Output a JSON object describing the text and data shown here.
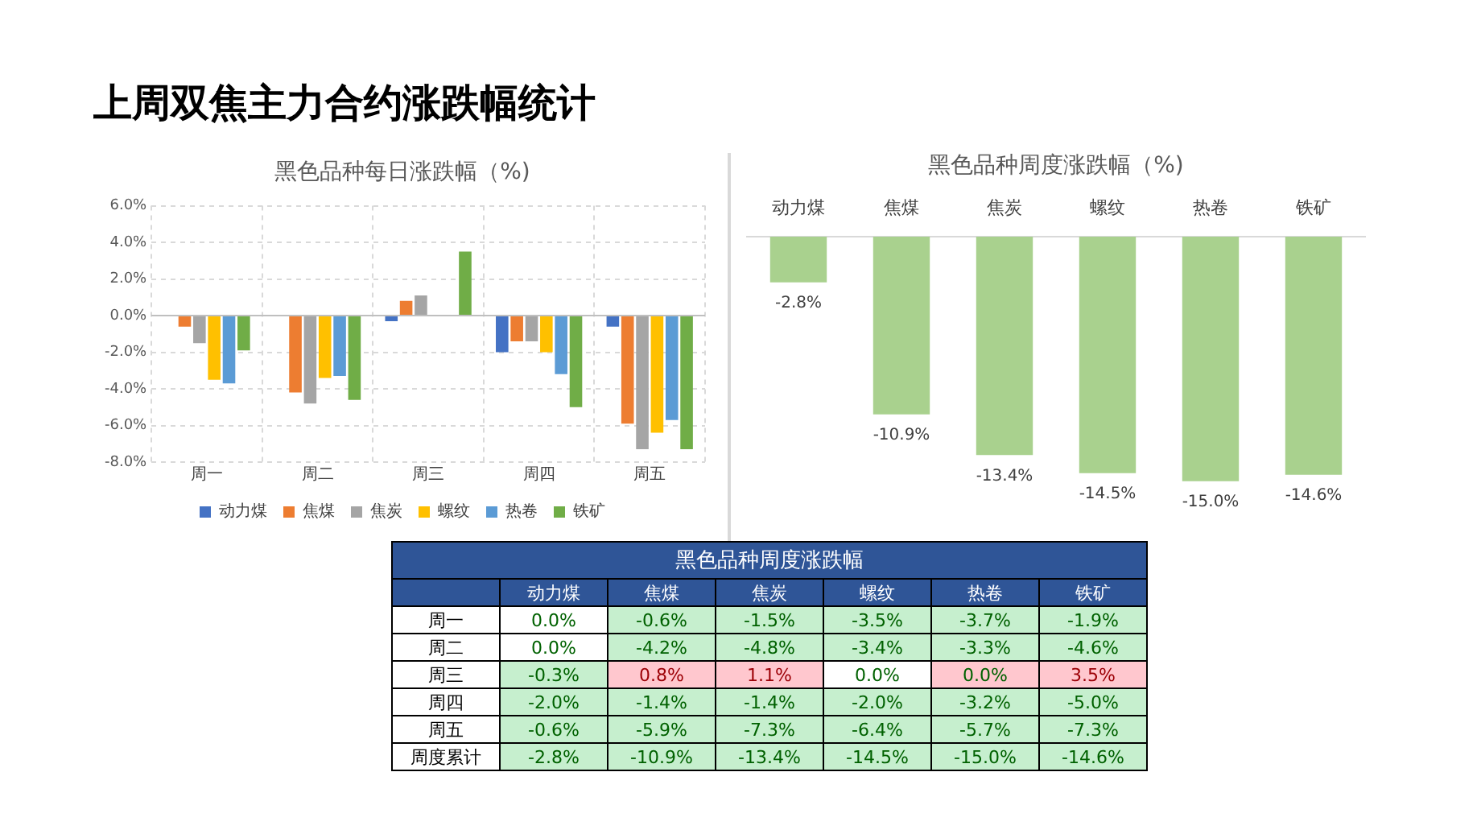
{
  "chart_data": [
    {
      "type": "bar",
      "title": "黑色品种每日涨跌幅（%)",
      "annotations": [
        "上周双焦主力合约涨跌幅统计"
      ],
      "categories": [
        "周一",
        "周二",
        "周三",
        "周四",
        "周五"
      ],
      "series": [
        {
          "name": "动力煤",
          "color": "#4472c4",
          "values": [
            0.0,
            0.0,
            -0.3,
            -2.0,
            -0.6
          ]
        },
        {
          "name": "焦煤",
          "color": "#ed7d31",
          "values": [
            -0.6,
            -4.2,
            0.8,
            -1.4,
            -5.9
          ]
        },
        {
          "name": "焦炭",
          "color": "#a5a5a5",
          "values": [
            -1.5,
            -4.8,
            1.1,
            -1.4,
            -7.3
          ]
        },
        {
          "name": "螺纹",
          "color": "#ffc000",
          "values": [
            -3.5,
            -3.4,
            0.0,
            -2.0,
            -6.4
          ]
        },
        {
          "name": "热卷",
          "color": "#5b9bd5",
          "values": [
            -3.7,
            -3.3,
            0.0,
            -3.2,
            -5.7
          ]
        },
        {
          "name": "铁矿",
          "color": "#70ad47",
          "values": [
            -1.9,
            -4.6,
            3.5,
            -5.0,
            -7.3
          ]
        }
      ],
      "ylim": [
        -8,
        6
      ],
      "yticks": [
        {
          "value": -8,
          "label": "-8.0%"
        },
        {
          "value": -6,
          "label": "-6.0%"
        },
        {
          "value": -4,
          "label": "-4.0%"
        },
        {
          "value": -2,
          "label": "-2.0%"
        },
        {
          "value": 0,
          "label": "0.0%"
        },
        {
          "value": 2,
          "label": "2.0%"
        },
        {
          "value": 4,
          "label": "4.0%"
        },
        {
          "value": 6,
          "label": "6.0%"
        }
      ],
      "grid": true,
      "legend": "bottom"
    },
    {
      "type": "bar",
      "title": "黑色品种周度涨跌幅（%)",
      "categories": [
        "动力煤",
        "焦煤",
        "焦炭",
        "螺纹",
        "热卷",
        "铁矿"
      ],
      "values": [
        -2.8,
        -10.9,
        -13.4,
        -14.5,
        -15.0,
        -14.6
      ],
      "color": "#a9d18e",
      "value_labels": [
        "-2.8%",
        "-10.9%",
        "-13.4%",
        "-14.5%",
        "-15.0%",
        "-14.6%"
      ]
    },
    {
      "type": "heatmap",
      "title": "黑色品种周度涨跌幅",
      "categories": [
        "动力煤",
        "焦煤",
        "焦炭",
        "螺纹",
        "热卷",
        "铁矿"
      ],
      "y_categories": [
        "周一",
        "周二",
        "周三",
        "周四",
        "周五",
        "周度累计"
      ],
      "cells": [
        [
          0.0,
          -0.6,
          -1.5,
          -3.5,
          -3.7,
          -1.9
        ],
        [
          0.0,
          -4.2,
          -4.8,
          -3.4,
          -3.3,
          -4.6
        ],
        [
          -0.3,
          0.8,
          1.1,
          0.0,
          0.0,
          3.5
        ],
        [
          -2.0,
          -1.4,
          -1.4,
          -2.0,
          -3.2,
          -5.0
        ],
        [
          -0.6,
          -5.9,
          -7.3,
          -6.4,
          -5.7,
          -7.3
        ],
        [
          -2.8,
          -10.9,
          -13.4,
          -14.5,
          -15.0,
          -14.6
        ]
      ],
      "cell_labels": [
        [
          "0.0%",
          "-0.6%",
          "-1.5%",
          "-3.5%",
          "-3.7%",
          "-1.9%"
        ],
        [
          "0.0%",
          "-4.2%",
          "-4.8%",
          "-3.4%",
          "-3.3%",
          "-4.6%"
        ],
        [
          "-0.3%",
          "0.8%",
          "1.1%",
          "0.0%",
          "0.0%",
          "3.5%"
        ],
        [
          "-2.0%",
          "-1.4%",
          "-1.4%",
          "-2.0%",
          "-3.2%",
          "-5.0%"
        ],
        [
          "-0.6%",
          "-5.9%",
          "-7.3%",
          "-6.4%",
          "-5.7%",
          "-7.3%"
        ],
        [
          "-2.8%",
          "-10.9%",
          "-13.4%",
          "-14.5%",
          "-15.0%",
          "-14.6%"
        ]
      ],
      "colors": [
        [
          "#ffffff",
          "#c6efce",
          "#c6efce",
          "#c6efce",
          "#c6efce",
          "#c6efce"
        ],
        [
          "#ffffff",
          "#c6efce",
          "#c6efce",
          "#c6efce",
          "#c6efce",
          "#c6efce"
        ],
        [
          "#c6efce",
          "#ffc7ce",
          "#ffc7ce",
          "#ffffff",
          "#ffc7ce",
          "#ffc7ce"
        ],
        [
          "#c6efce",
          "#c6efce",
          "#c6efce",
          "#c6efce",
          "#c6efce",
          "#c6efce"
        ],
        [
          "#c6efce",
          "#c6efce",
          "#c6efce",
          "#c6efce",
          "#c6efce",
          "#c6efce"
        ],
        [
          "#c6efce",
          "#c6efce",
          "#c6efce",
          "#c6efce",
          "#c6efce",
          "#c6efce"
        ]
      ]
    }
  ]
}
